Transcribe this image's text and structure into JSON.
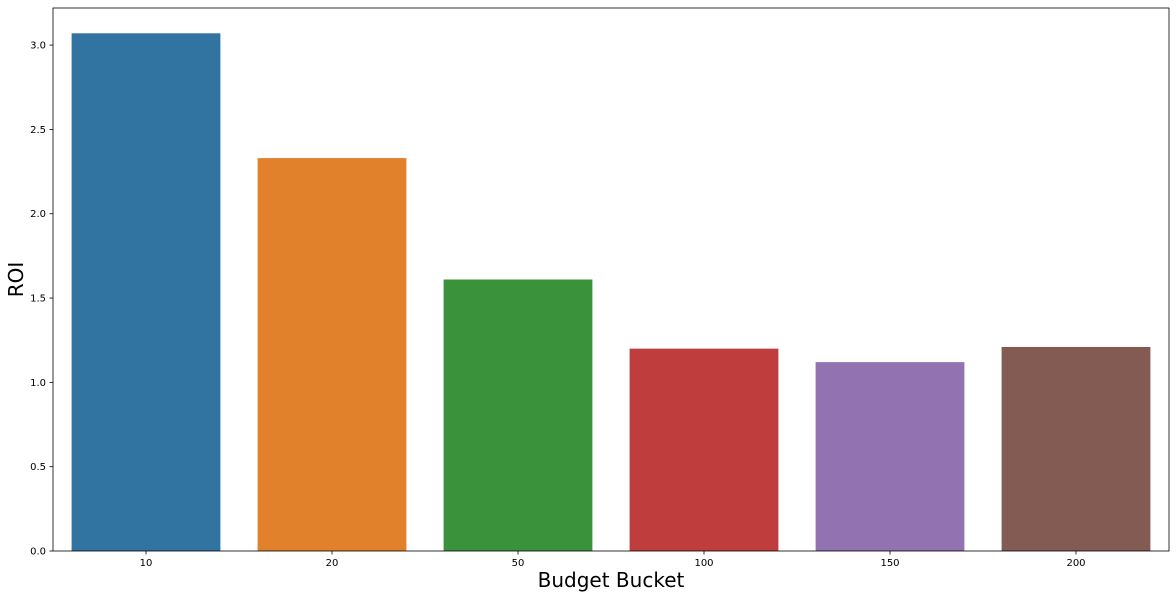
{
  "chart_data": {
    "type": "bar",
    "title": "",
    "xlabel": "Budget Bucket",
    "ylabel": "ROI",
    "categories": [
      "10",
      "20",
      "50",
      "100",
      "150",
      "200"
    ],
    "values": [
      3.07,
      2.33,
      1.61,
      1.2,
      1.12,
      1.21
    ],
    "colors": [
      "#3274a1",
      "#e1812c",
      "#3a923a",
      "#c03d3e",
      "#9372b2",
      "#845b53"
    ],
    "ylim": [
      0,
      3.22
    ],
    "yticks": [
      0.0,
      0.5,
      1.0,
      1.5,
      2.0,
      2.5,
      3.0
    ],
    "ytick_labels": [
      "0.0",
      "0.5",
      "1.0",
      "1.5",
      "2.0",
      "2.5",
      "3.0"
    ],
    "grid": false,
    "legend": "none"
  }
}
